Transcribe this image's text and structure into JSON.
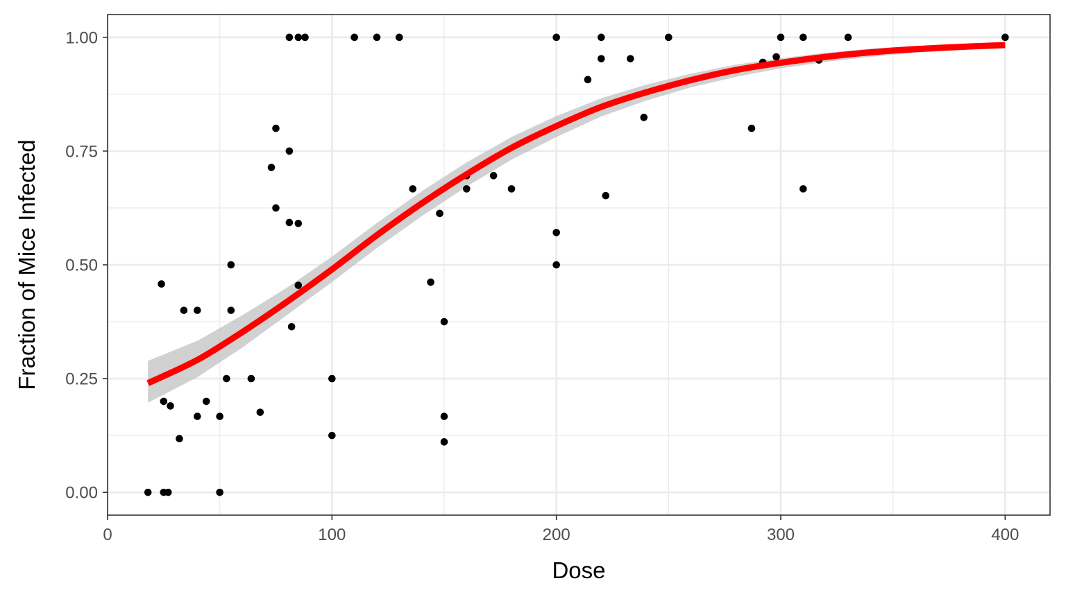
{
  "chart_data": {
    "type": "scatter",
    "title": "",
    "xlabel": "Dose",
    "ylabel": "Fraction of Mice Infected",
    "xlim": [
      0,
      420
    ],
    "ylim": [
      -0.05,
      1.05
    ],
    "x_ticks": [
      0,
      100,
      200,
      300,
      400
    ],
    "x_tick_labels": [
      "0",
      "100",
      "200",
      "300",
      "400"
    ],
    "y_ticks": [
      0,
      0.25,
      0.5,
      0.75,
      1.0
    ],
    "y_tick_labels": [
      "0.00",
      "0.25",
      "0.50",
      "0.75",
      "1.00"
    ],
    "grid": true,
    "colors": {
      "points": "#000000",
      "fit_line": "#ff0000",
      "confidence_band": "#bfbfbf",
      "grid": "#ebebeb",
      "panel_border": "#333333"
    },
    "points": [
      [
        18,
        0
      ],
      [
        24,
        0.458
      ],
      [
        25,
        0.2
      ],
      [
        25,
        0
      ],
      [
        27,
        0
      ],
      [
        28,
        0.19
      ],
      [
        32,
        0.118
      ],
      [
        34,
        0.4
      ],
      [
        40,
        0.167
      ],
      [
        40,
        0.4
      ],
      [
        44,
        0.2
      ],
      [
        50,
        0.167
      ],
      [
        50,
        0
      ],
      [
        53,
        0.25
      ],
      [
        55,
        0.5
      ],
      [
        55,
        0.4
      ],
      [
        64,
        0.25
      ],
      [
        68,
        0.176
      ],
      [
        73,
        0.714
      ],
      [
        75,
        0.8
      ],
      [
        75,
        0.625
      ],
      [
        81,
        1.0
      ],
      [
        81,
        0.75
      ],
      [
        81,
        0.593
      ],
      [
        82,
        0.364
      ],
      [
        85,
        1.0
      ],
      [
        85,
        0.591
      ],
      [
        85,
        0.455
      ],
      [
        88,
        1.0
      ],
      [
        100,
        0.25
      ],
      [
        100,
        0.125
      ],
      [
        110,
        1.0
      ],
      [
        120,
        1.0
      ],
      [
        130,
        1.0
      ],
      [
        136,
        0.667
      ],
      [
        144,
        0.462
      ],
      [
        148,
        0.613
      ],
      [
        150,
        0.375
      ],
      [
        150,
        0.167
      ],
      [
        150,
        0.111
      ],
      [
        160,
        0.696
      ],
      [
        160,
        0.667
      ],
      [
        172,
        0.696
      ],
      [
        180,
        0.667
      ],
      [
        200,
        1.0
      ],
      [
        200,
        0.571
      ],
      [
        200,
        0.5
      ],
      [
        214,
        0.907
      ],
      [
        220,
        1.0
      ],
      [
        220,
        0.953
      ],
      [
        222,
        0.652
      ],
      [
        233,
        0.953
      ],
      [
        239,
        0.824
      ],
      [
        250,
        1.0
      ],
      [
        287,
        0.8
      ],
      [
        292,
        0.945
      ],
      [
        298,
        0.957
      ],
      [
        300,
        1.0
      ],
      [
        310,
        1.0
      ],
      [
        310,
        0.667
      ],
      [
        317,
        0.95
      ],
      [
        330,
        1.0
      ],
      [
        400,
        1.0
      ]
    ],
    "fit": {
      "model": "logistic",
      "curve": [
        [
          18,
          0.24
        ],
        [
          40,
          0.291
        ],
        [
          60,
          0.352
        ],
        [
          80,
          0.419
        ],
        [
          100,
          0.49
        ],
        [
          120,
          0.565
        ],
        [
          140,
          0.635
        ],
        [
          160,
          0.699
        ],
        [
          180,
          0.757
        ],
        [
          200,
          0.805
        ],
        [
          220,
          0.847
        ],
        [
          240,
          0.879
        ],
        [
          260,
          0.906
        ],
        [
          280,
          0.928
        ],
        [
          300,
          0.944
        ],
        [
          320,
          0.957
        ],
        [
          340,
          0.967
        ],
        [
          360,
          0.974
        ],
        [
          380,
          0.979
        ],
        [
          400,
          0.983
        ]
      ],
      "ci_lower": [
        [
          18,
          0.197
        ],
        [
          40,
          0.253
        ],
        [
          60,
          0.318
        ],
        [
          80,
          0.39
        ],
        [
          100,
          0.462
        ],
        [
          120,
          0.537
        ],
        [
          140,
          0.607
        ],
        [
          160,
          0.672
        ],
        [
          180,
          0.731
        ],
        [
          200,
          0.781
        ],
        [
          220,
          0.826
        ],
        [
          240,
          0.861
        ],
        [
          260,
          0.89
        ],
        [
          280,
          0.913
        ],
        [
          300,
          0.932
        ],
        [
          320,
          0.946
        ],
        [
          340,
          0.957
        ],
        [
          360,
          0.966
        ],
        [
          380,
          0.972
        ],
        [
          400,
          0.977
        ]
      ],
      "ci_upper": [
        [
          18,
          0.289
        ],
        [
          40,
          0.333
        ],
        [
          60,
          0.389
        ],
        [
          80,
          0.45
        ],
        [
          100,
          0.518
        ],
        [
          120,
          0.592
        ],
        [
          140,
          0.662
        ],
        [
          160,
          0.725
        ],
        [
          180,
          0.781
        ],
        [
          200,
          0.827
        ],
        [
          220,
          0.866
        ],
        [
          240,
          0.896
        ],
        [
          260,
          0.92
        ],
        [
          280,
          0.94
        ],
        [
          300,
          0.954
        ],
        [
          320,
          0.966
        ],
        [
          340,
          0.975
        ],
        [
          360,
          0.981
        ],
        [
          380,
          0.985
        ],
        [
          400,
          0.988
        ]
      ]
    }
  }
}
